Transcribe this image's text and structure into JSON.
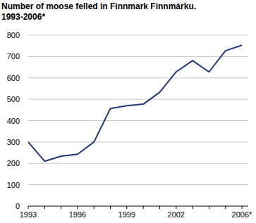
{
  "chart_data": {
    "type": "line",
    "title": "Number of moose felled in Finnmark Finnmárku.",
    "subtitle": "1993-2006*",
    "categories": [
      "1993",
      null,
      null,
      "1996",
      null,
      null,
      "1999",
      null,
      null,
      "2002",
      null,
      null,
      null,
      "2006*"
    ],
    "values": [
      300,
      210,
      234,
      243,
      300,
      457,
      470,
      477,
      533,
      628,
      681,
      628,
      727,
      753
    ],
    "color": "#1f3a7a",
    "ylim": [
      0,
      800
    ],
    "yticks": [
      0,
      100,
      200,
      300,
      400,
      500,
      600,
      700,
      800
    ],
    "grid": true
  }
}
